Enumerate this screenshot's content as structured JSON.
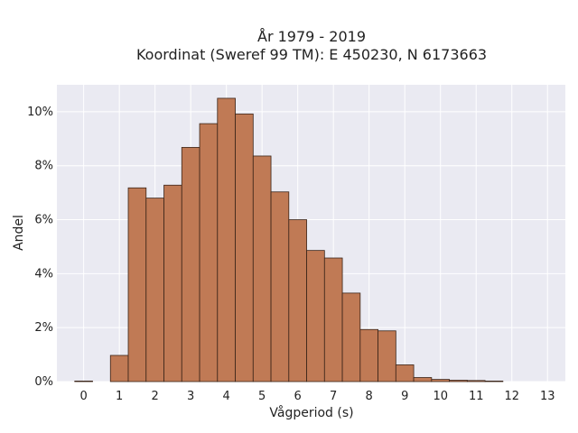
{
  "chart_data": {
    "type": "bar",
    "title": [
      "År 1979 - 2019",
      "Koordinat (Sweref 99 TM): E 450230, N 6173663"
    ],
    "xlabel": "Vågperiod (s)",
    "ylabel": "Andel",
    "xlim": [
      -0.75,
      13.5
    ],
    "ylim": [
      0,
      0.11
    ],
    "grid": true,
    "bin_width": 0.5,
    "bin_starts": [
      -0.25,
      0.25,
      0.75,
      1.25,
      1.75,
      2.25,
      2.75,
      3.25,
      3.75,
      4.25,
      4.75,
      5.25,
      5.75,
      6.25,
      6.75,
      7.25,
      7.75,
      8.25,
      8.75,
      9.25,
      9.75,
      10.25,
      10.75,
      11.25,
      11.75,
      12.25,
      12.75
    ],
    "values": [
      0.0002,
      0,
      0.0097,
      0.0718,
      0.068,
      0.0728,
      0.0868,
      0.0956,
      0.105,
      0.0992,
      0.0836,
      0.0703,
      0.06,
      0.0486,
      0.0458,
      0.0328,
      0.0193,
      0.0188,
      0.0062,
      0.0015,
      0.0008,
      0.0005,
      0.0004,
      0.0002,
      0,
      0,
      0
    ],
    "x_ticks": [
      0,
      1,
      2,
      3,
      4,
      5,
      6,
      7,
      8,
      9,
      10,
      11,
      12,
      13
    ],
    "y_ticks": [
      0,
      0.02,
      0.04,
      0.06,
      0.08,
      0.1
    ],
    "y_tick_labels": [
      "0%",
      "2%",
      "4%",
      "6%",
      "8%",
      "10%"
    ],
    "colors": {
      "bar_fill": "#c07a55",
      "bar_edge": "#3a2418",
      "plot_background": "#eaeaf2",
      "grid": "#ffffff"
    }
  }
}
